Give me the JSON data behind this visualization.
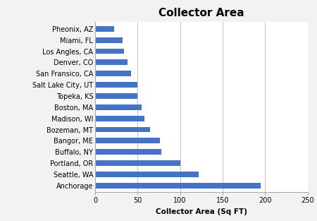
{
  "title": "Collector Area",
  "xlabel": "Collector Area (Sq FT)",
  "categories": [
    "Anchorage",
    "Seattle, WA",
    "Portland, OR",
    "Buffalo, NY",
    "Bangor, ME",
    "Bozeman, MT",
    "Madison, WI",
    "Boston, MA",
    "Topeka, KS",
    "Salt Lake City, UT",
    "San Fransico, CA",
    "Denver, CO",
    "Los Angles, CA",
    "Miami, FL",
    "Pheonix, AZ"
  ],
  "values": [
    195,
    122,
    100,
    78,
    76,
    65,
    58,
    55,
    50,
    50,
    42,
    38,
    34,
    32,
    22
  ],
  "bar_color": "#4472C4",
  "xlim": [
    0,
    250
  ],
  "xticks": [
    0,
    50,
    100,
    150,
    200,
    250
  ],
  "background_color": "#f2f2f2",
  "plot_background": "#ffffff",
  "grid_color": "#c0c0c0",
  "title_fontsize": 11,
  "label_fontsize": 7.5,
  "tick_fontsize": 7,
  "bar_height": 0.5
}
